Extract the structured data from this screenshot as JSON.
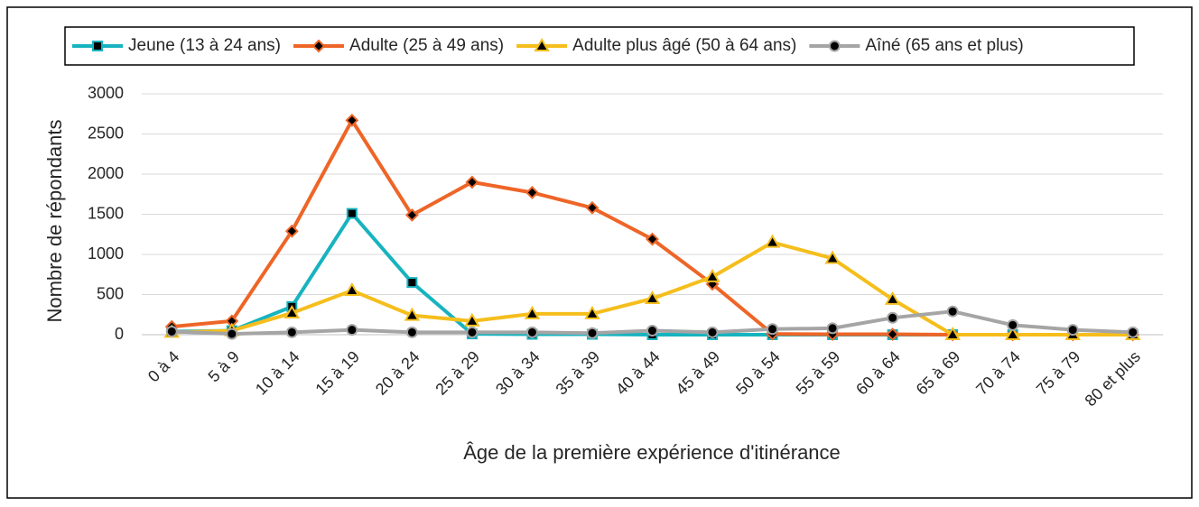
{
  "chart_data": {
    "type": "line",
    "x_label": "Âge de la première expérience d'itinérance",
    "y_label": "Nombre de répondants",
    "categories": [
      "0 à 4",
      "5 à 9",
      "10 à 14",
      "15 à 19",
      "20 à 24",
      "25 à 29",
      "30 à 34",
      "35 à 39",
      "40 à 44",
      "45 à 49",
      "50 à 54",
      "55 à 59",
      "60 à 64",
      "65 à 69",
      "70 à 74",
      "75 à 79",
      "80 et plus"
    ],
    "series": [
      {
        "name": "Jeune (13 à 24 ans)",
        "color": "#17b3bf",
        "marker": "square",
        "values": [
          40,
          50,
          350,
          1510,
          650,
          10,
          5,
          5,
          0,
          0,
          0,
          0,
          0,
          0,
          0,
          0,
          0
        ]
      },
      {
        "name": "Adulte (25 à 49 ans)",
        "color": "#ee6527",
        "marker": "diamond",
        "values": [
          100,
          170,
          1290,
          2670,
          1490,
          1900,
          1770,
          1580,
          1190,
          630,
          10,
          5,
          5,
          0,
          0,
          0,
          0
        ]
      },
      {
        "name": "Adulte plus âgé (50 à 64 ans)",
        "color": "#f5be1c",
        "marker": "triangle",
        "values": [
          30,
          50,
          270,
          550,
          240,
          170,
          260,
          260,
          450,
          720,
          1150,
          950,
          440,
          0,
          0,
          0,
          0
        ]
      },
      {
        "name": "Aîné (65 ans et plus)",
        "color": "#a5a5a5",
        "marker": "circle",
        "values": [
          40,
          10,
          30,
          60,
          30,
          30,
          30,
          20,
          50,
          30,
          70,
          80,
          210,
          290,
          120,
          60,
          30
        ]
      }
    ],
    "ylim": [
      0,
      3000
    ],
    "yticks": [
      0,
      500,
      1000,
      1500,
      2000,
      2500,
      3000
    ],
    "grid": true,
    "legend": "top"
  }
}
